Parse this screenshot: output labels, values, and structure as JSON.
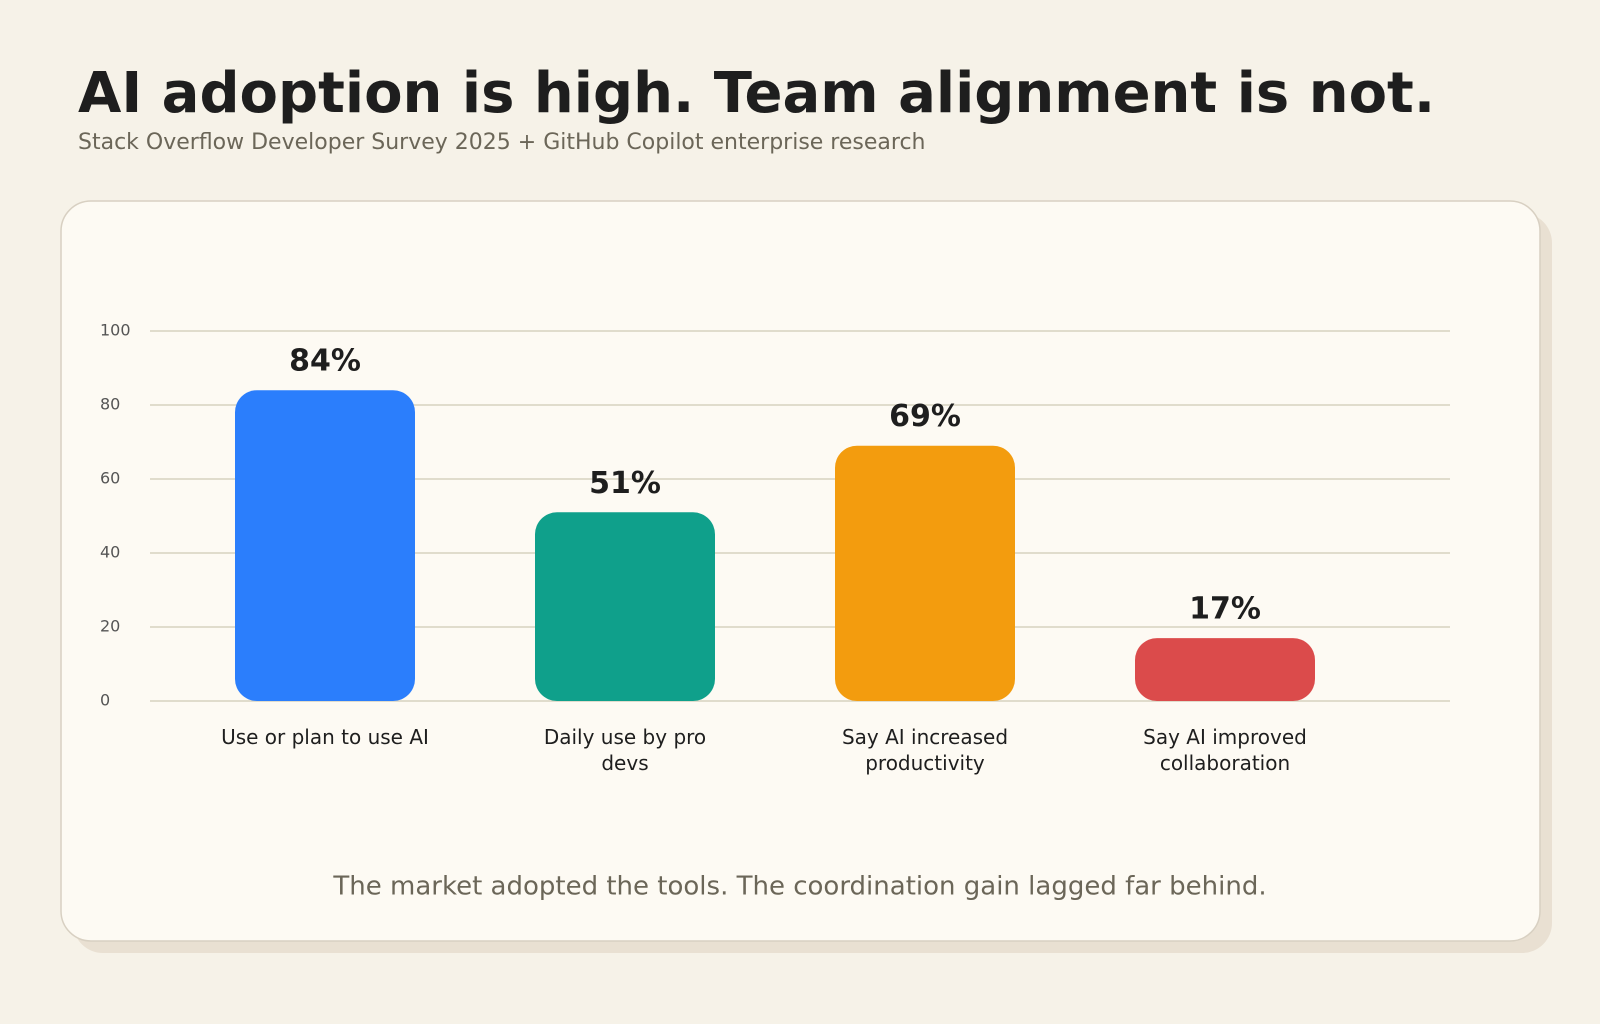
{
  "chart_data": {
    "type": "bar",
    "title": "AI adoption is high. Team alignment is not.",
    "subtitle": "Stack Overflow Developer Survey 2025 + GitHub Copilot enterprise research",
    "categories": [
      "Use or plan to use AI",
      "Daily use by pro devs",
      "Say AI increased productivity",
      "Say AI improved collaboration"
    ],
    "values": [
      84,
      51,
      69,
      17
    ],
    "value_labels": [
      "84%",
      "51%",
      "69%",
      "17%"
    ],
    "colors": [
      "#2b7efc",
      "#0fa08b",
      "#f39c0e",
      "#db4b4b"
    ],
    "ylim": [
      0,
      100
    ],
    "yticks": [
      0,
      20,
      40,
      60,
      80,
      100
    ],
    "grid": true,
    "caption": "The market adopted the tools. The coordination gain lagged far behind."
  }
}
